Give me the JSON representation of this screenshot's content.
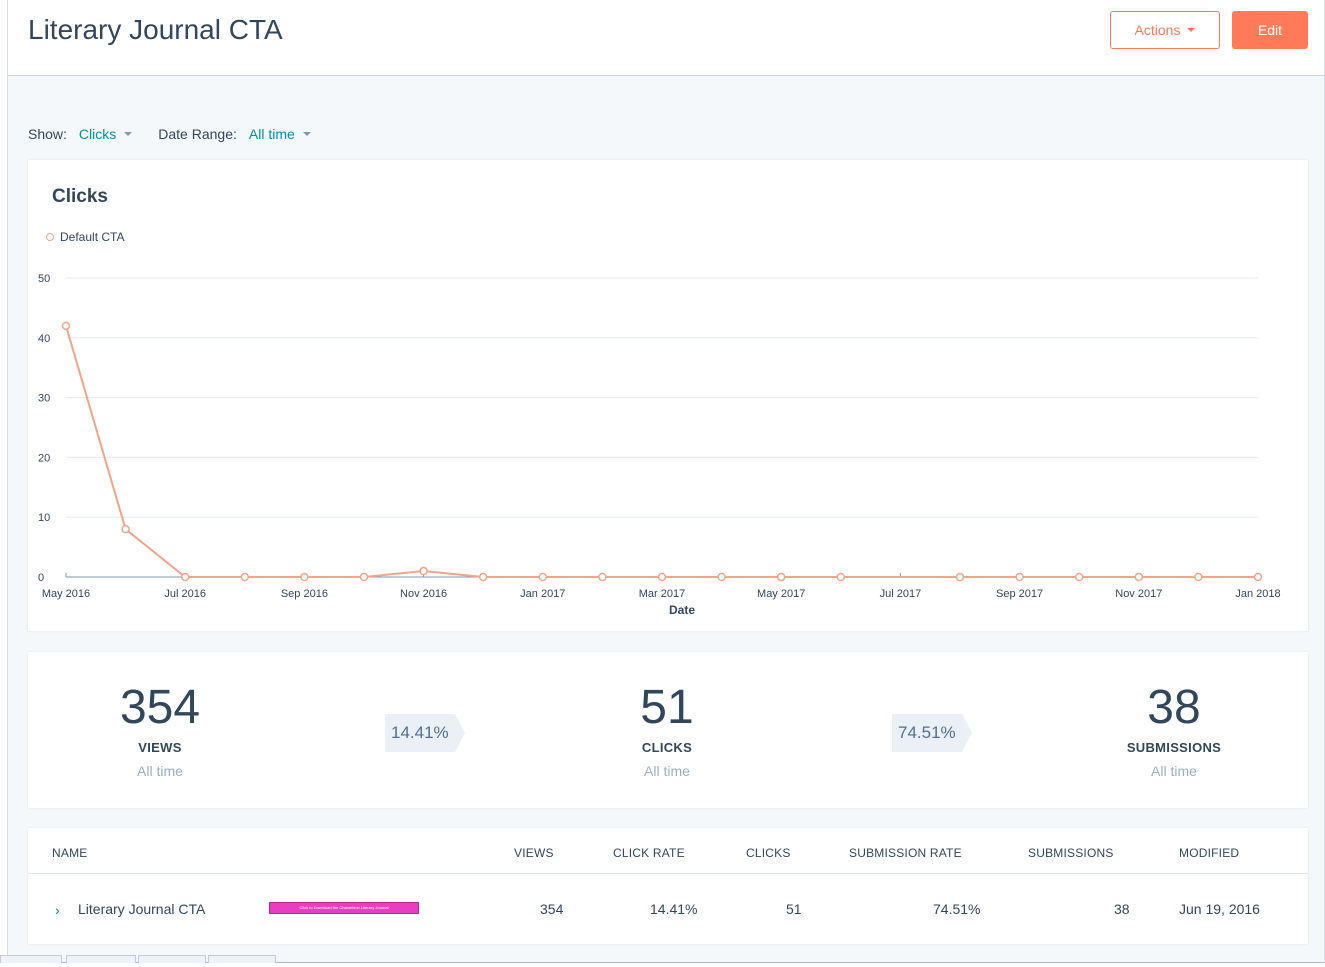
{
  "header": {
    "title": "Literary Journal CTA",
    "actions_label": "Actions",
    "edit_label": "Edit"
  },
  "filters": {
    "show_label": "Show:",
    "show_value": "Clicks",
    "range_label": "Date Range:",
    "range_value": "All time"
  },
  "colors": {
    "accent": "#ff7a59",
    "link": "#0091ae",
    "series": "#f2a58a"
  },
  "chart_data": {
    "type": "line",
    "title": "Clicks",
    "xlabel": "Date",
    "ylabel": "",
    "ylim": [
      0,
      50
    ],
    "yticks": [
      0,
      10,
      20,
      30,
      40,
      50
    ],
    "grid": true,
    "legend_position": "top-left",
    "tick_labels": [
      "May 2016",
      "Jul 2016",
      "Sep 2016",
      "Nov 2016",
      "Jan 2017",
      "Mar 2017",
      "May 2017",
      "Jul 2017",
      "Sep 2017",
      "Nov 2017",
      "Jan 2018"
    ],
    "x": [
      "2016-05",
      "2016-06",
      "2016-07",
      "2016-08",
      "2016-09",
      "2016-10",
      "2016-11",
      "2016-12",
      "2017-01",
      "2017-02",
      "2017-03",
      "2017-04",
      "2017-05",
      "2017-06",
      "2017-07",
      "2017-08",
      "2017-09",
      "2017-10",
      "2017-11",
      "2017-12",
      "2018-01"
    ],
    "series": [
      {
        "name": "Default CTA",
        "values": [
          42,
          8,
          0,
          0,
          0,
          0,
          1,
          0,
          0,
          0,
          0,
          0,
          0,
          0,
          null,
          0,
          0,
          0,
          0,
          0,
          0
        ]
      }
    ]
  },
  "stats": {
    "views": {
      "value": "354",
      "label": "VIEWS",
      "sub": "All time"
    },
    "click_rate": "14.41%",
    "clicks": {
      "value": "51",
      "label": "CLICKS",
      "sub": "All time"
    },
    "submission_rate": "74.51%",
    "submissions": {
      "value": "38",
      "label": "SUBMISSIONS",
      "sub": "All time"
    }
  },
  "table": {
    "headers": {
      "name": "NAME",
      "views": "VIEWS",
      "click_rate": "CLICK RATE",
      "clicks": "CLICKS",
      "submission_rate": "SUBMISSION RATE",
      "submissions": "SUBMISSIONS",
      "modified": "MODIFIED"
    },
    "row": {
      "name": "Literary Journal CTA",
      "thumbnail_text": "Click to Download the Chameleon Literary Journal",
      "views": "354",
      "click_rate": "14.41%",
      "clicks": "51",
      "submission_rate": "74.51%",
      "submissions": "38",
      "modified": "Jun 19, 2016"
    }
  }
}
